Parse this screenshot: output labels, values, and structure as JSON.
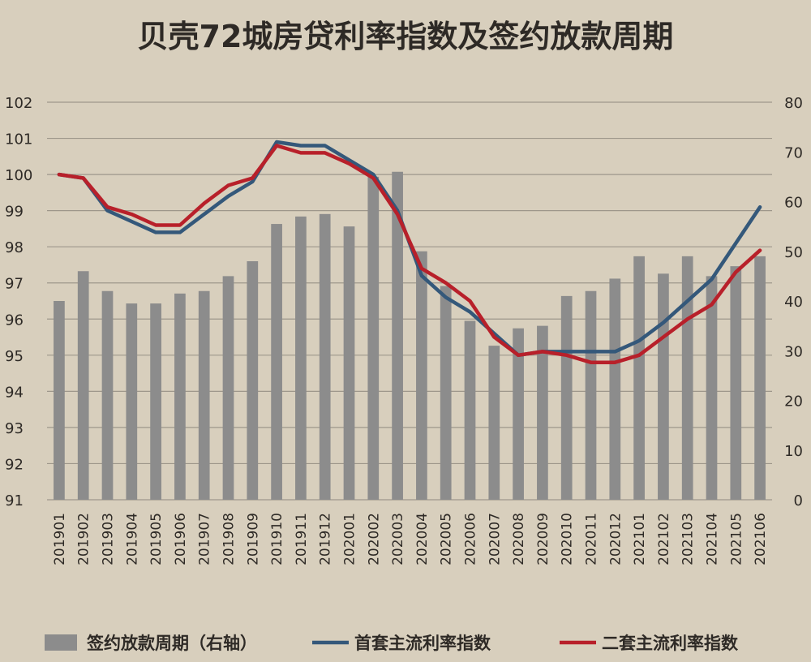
{
  "chart_data": {
    "type": "bar+line",
    "title": "贝壳72城房贷利率指数及签约放款周期",
    "categories": [
      "201901",
      "201902",
      "201903",
      "201904",
      "201905",
      "201906",
      "201907",
      "201908",
      "201909",
      "201910",
      "201911",
      "201912",
      "202001",
      "202002",
      "202003",
      "202004",
      "202005",
      "202006",
      "202007",
      "202008",
      "202009",
      "202010",
      "202011",
      "202012",
      "202101",
      "202102",
      "202103",
      "202104",
      "202105",
      "202106"
    ],
    "left_axis": {
      "ylim": [
        91,
        102
      ],
      "ticks": [
        91,
        92,
        93,
        94,
        95,
        96,
        97,
        98,
        99,
        100,
        101,
        102
      ]
    },
    "right_axis": {
      "ylim": [
        0,
        80
      ],
      "ticks": [
        0,
        10,
        20,
        30,
        40,
        50,
        60,
        70,
        80
      ]
    },
    "grid": true,
    "legend_position": "bottom",
    "series": [
      {
        "name": "签约放款周期（右轴）",
        "type": "bar",
        "axis": "right",
        "color": "#8c8c8c",
        "values": [
          40,
          46,
          42,
          39.5,
          39.5,
          41.5,
          42,
          45,
          48,
          55.5,
          57,
          57.5,
          55,
          65,
          66,
          50,
          43,
          36,
          31,
          34.5,
          35,
          41,
          42,
          44.5,
          49,
          45.5,
          49,
          45,
          47,
          49
        ]
      },
      {
        "name": "首套主流利率指数",
        "type": "line",
        "axis": "left",
        "color": "#34587a",
        "values": [
          100,
          99.9,
          99,
          98.7,
          98.4,
          98.4,
          98.9,
          99.4,
          99.8,
          100.9,
          100.8,
          100.8,
          100.4,
          100,
          99,
          97.2,
          96.6,
          96.2,
          95.6,
          95,
          95.1,
          95.1,
          95.1,
          95.1,
          95.4,
          95.9,
          96.5,
          97.1,
          98.1,
          99.1
        ]
      },
      {
        "name": "二套主流利率指数",
        "type": "line",
        "axis": "left",
        "color": "#b8202a",
        "values": [
          100,
          99.9,
          99.1,
          98.9,
          98.6,
          98.6,
          99.2,
          99.7,
          99.9,
          100.8,
          100.6,
          100.6,
          100.3,
          99.9,
          98.9,
          97.4,
          97,
          96.5,
          95.5,
          95,
          95.1,
          95,
          94.8,
          94.8,
          95,
          95.5,
          96,
          96.4,
          97.3,
          97.9
        ]
      }
    ]
  }
}
